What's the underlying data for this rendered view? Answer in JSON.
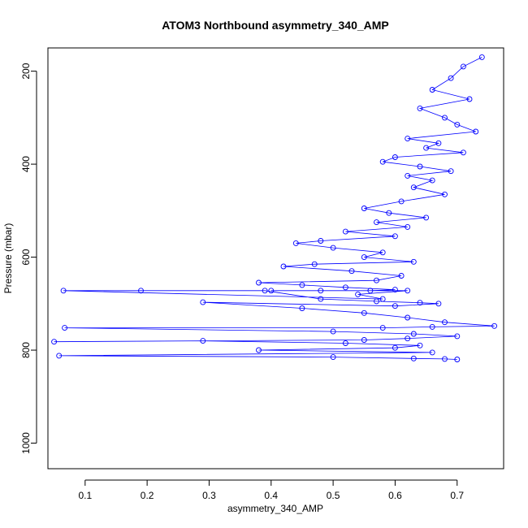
{
  "chart_data": {
    "type": "scatter",
    "title": "ATOM3 Northbound asymmetry_340_AMP",
    "xlabel": "asymmetry_340_AMP",
    "ylabel": "Pressure (mbar)",
    "xlim": [
      0.04,
      0.775
    ],
    "ylim": [
      1055,
      150
    ],
    "y_reversed": true,
    "x_ticks": [
      0.1,
      0.2,
      0.3,
      0.4,
      0.5,
      0.6,
      0.7
    ],
    "x_tick_labels": [
      "0.1",
      "0.2",
      "0.3",
      "0.4",
      "0.5",
      "0.6",
      "0.7"
    ],
    "y_ticks": [
      200,
      400,
      600,
      800,
      1000
    ],
    "y_tick_labels": [
      "200",
      "400",
      "600",
      "800",
      "1000"
    ],
    "grid": false,
    "legend": "none",
    "marker": "open-circle",
    "connect_points": true,
    "color": "#0000ff",
    "series": [
      {
        "x": [
          0.74,
          0.71,
          0.69,
          0.66,
          0.72,
          0.64,
          0.68,
          0.7,
          0.73,
          0.62,
          0.67,
          0.65,
          0.71,
          0.6,
          0.58,
          0.64,
          0.69,
          0.62,
          0.66,
          0.63,
          0.68,
          0.61,
          0.55,
          0.59,
          0.65,
          0.57,
          0.62,
          0.52,
          0.6,
          0.48,
          0.44,
          0.5,
          0.58,
          0.55,
          0.63,
          0.47,
          0.42,
          0.53,
          0.61,
          0.57,
          0.38,
          0.45,
          0.52,
          0.6,
          0.56,
          0.4,
          0.48,
          0.62,
          0.54,
          0.58,
          0.065,
          0.19,
          0.39,
          0.48,
          0.57,
          0.64,
          0.67,
          0.6,
          0.29,
          0.45,
          0.55,
          0.62,
          0.68,
          0.76,
          0.66,
          0.58,
          0.067,
          0.5,
          0.63,
          0.7,
          0.62,
          0.55,
          0.05,
          0.29,
          0.52,
          0.64,
          0.6,
          0.38,
          0.66,
          0.058,
          0.5,
          0.63,
          0.68,
          0.7
        ],
        "y": [
          170,
          190,
          215,
          240,
          260,
          280,
          300,
          315,
          330,
          345,
          355,
          365,
          375,
          385,
          395,
          405,
          415,
          425,
          435,
          450,
          465,
          480,
          495,
          505,
          515,
          525,
          535,
          545,
          555,
          565,
          570,
          580,
          590,
          600,
          610,
          615,
          620,
          630,
          640,
          650,
          655,
          660,
          665,
          670,
          672,
          672,
          672,
          672,
          680,
          690,
          672,
          672,
          672,
          690,
          695,
          698,
          700,
          705,
          697,
          710,
          720,
          730,
          740,
          748,
          750,
          752,
          752,
          760,
          765,
          770,
          775,
          778,
          782,
          780,
          785,
          790,
          795,
          800,
          805,
          812,
          815,
          818,
          819,
          820
        ]
      }
    ]
  }
}
